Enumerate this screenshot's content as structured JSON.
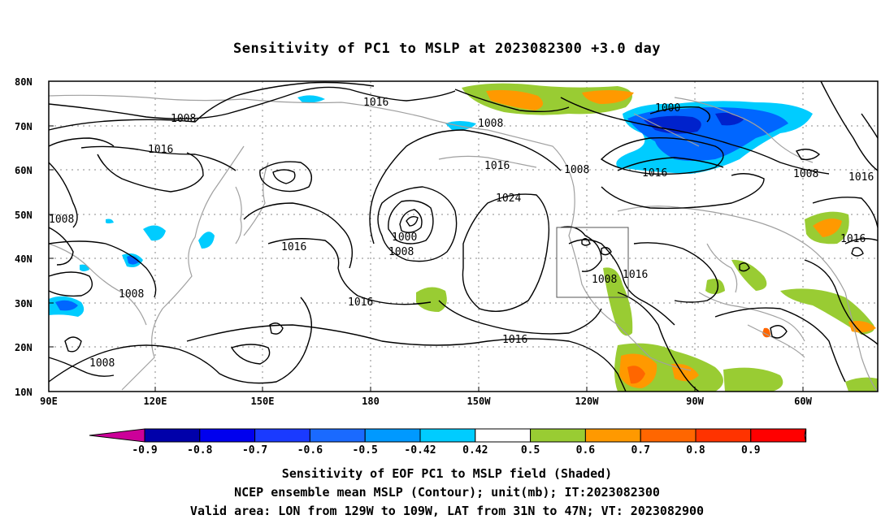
{
  "title": "Sensitivity of PC1 to MSLP at 2023082300 +3.0 day",
  "map": {
    "lat_labels": [
      "80N",
      "70N",
      "60N",
      "50N",
      "40N",
      "30N",
      "20N",
      "10N"
    ],
    "lon_labels": [
      "90E",
      "120E",
      "150E",
      "180",
      "150W",
      "120W",
      "90W",
      "60W"
    ],
    "contour_labels": [
      "1016",
      "1008",
      "1008",
      "1016",
      "1016",
      "1016",
      "1008",
      "1000",
      "1008",
      "1016",
      "1024",
      "1016",
      "1008",
      "1000",
      "1016",
      "1008",
      "1016",
      "1016",
      "1008",
      "1016",
      "1008",
      "1008"
    ],
    "colors": {
      "contour": "#000000",
      "coast": "#a0a0a0",
      "grid": "#888888",
      "pos_green": "#99cc33",
      "pos_orange": "#ff9900",
      "pos_dark_orange": "#ff6600",
      "neg_light_blue": "#00ccff",
      "neg_blue": "#0066ff",
      "neg_dark_blue": "#0022cc"
    }
  },
  "colorbar": {
    "tick_labels": [
      "-0.9",
      "-0.8",
      "-0.7",
      "-0.6",
      "-0.5",
      "-0.42",
      "0.42",
      "0.5",
      "0.6",
      "0.7",
      "0.8",
      "0.9"
    ],
    "colors": [
      "#cc0099",
      "#0000aa",
      "#0000ee",
      "#1a3aff",
      "#1a6aff",
      "#0099ff",
      "#00ccff",
      "#ffffff",
      "#99cc33",
      "#ff9900",
      "#ff6600",
      "#ff3300",
      "#ff0000",
      "#ff99cc"
    ]
  },
  "captions": {
    "line1": "Sensitivity of EOF PC1 to MSLP field (Shaded)",
    "line2": "NCEP ensemble mean MSLP (Contour); unit(mb); IT:2023082300",
    "line3": "Valid area: LON from 129W to 109W, LAT from 31N to 47N; VT: 2023082900"
  }
}
